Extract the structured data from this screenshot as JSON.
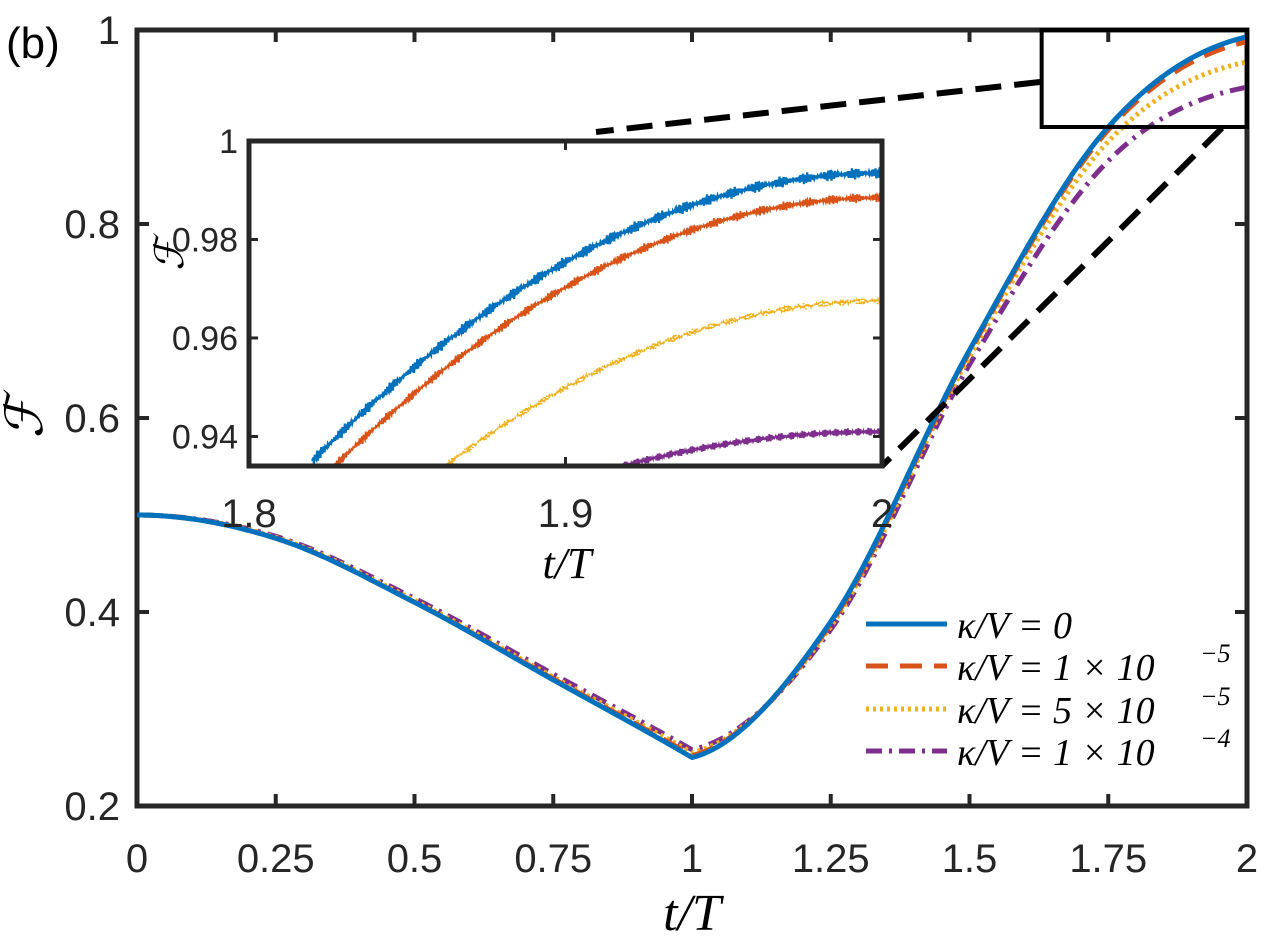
{
  "chart_data": [
    {
      "type": "line",
      "panel_label": "(b)",
      "xlabel": "t/T",
      "ylabel": "ℱ",
      "xlim": [
        0,
        2
      ],
      "ylim": [
        0.2,
        1
      ],
      "xticks": [
        0,
        0.25,
        0.5,
        0.75,
        1,
        1.25,
        1.5,
        1.75,
        2
      ],
      "xtick_labels": [
        "0",
        "0.25",
        "0.5",
        "0.75",
        "1",
        "1.25",
        "1.5",
        "1.75",
        "2"
      ],
      "yticks": [
        0.2,
        0.4,
        0.6,
        0.8,
        1
      ],
      "ytick_labels": [
        "0.2",
        "0.4",
        "0.6",
        "0.8",
        "1"
      ],
      "legend_position": "bottom-right",
      "x": [
        0,
        0.25,
        0.5,
        0.75,
        1,
        1.25,
        1.5,
        1.75,
        2
      ],
      "series": [
        {
          "name": "κ/V = 0",
          "legend_lhs": "κ/V = 0",
          "legend_exp": "",
          "color": "#0072BD",
          "dash": "solid",
          "values": [
            0.5,
            0.476,
            0.41,
            0.33,
            0.25,
            0.39,
            0.67,
            0.9,
            0.993
          ]
        },
        {
          "name": "κ/V = 1 × 10⁻⁵",
          "legend_lhs": "κ/V = 1 × 10",
          "legend_exp": "−5",
          "color": "#D95319",
          "dash": "dashed",
          "values": [
            0.5,
            0.476,
            0.41,
            0.331,
            0.252,
            0.388,
            0.668,
            0.897,
            0.988
          ]
        },
        {
          "name": "κ/V = 5 × 10⁻⁵",
          "legend_lhs": "κ/V = 5 × 10",
          "legend_exp": "−5",
          "color": "#EDB120",
          "dash": "dotted",
          "values": [
            0.5,
            0.477,
            0.412,
            0.333,
            0.255,
            0.385,
            0.663,
            0.885,
            0.967
          ]
        },
        {
          "name": "κ/V = 1 × 10⁻⁴",
          "legend_lhs": "κ/V = 1 × 10",
          "legend_exp": "−4",
          "color": "#7E2F8E",
          "dash": "dashdot",
          "values": [
            0.5,
            0.478,
            0.414,
            0.336,
            0.258,
            0.382,
            0.655,
            0.865,
            0.941
          ]
        }
      ],
      "zoom_box": {
        "xlim": [
          1.63,
          2
        ],
        "ylim": [
          0.9,
          1
        ]
      }
    },
    {
      "type": "line",
      "role": "inset",
      "xlabel": "t/T",
      "ylabel": "ℱ",
      "xlim": [
        1.8,
        2
      ],
      "ylim": [
        0.934,
        1
      ],
      "xticks": [
        1.8,
        1.9,
        2
      ],
      "xtick_labels": [
        "1.8",
        "1.9",
        "2"
      ],
      "yticks": [
        0.94,
        0.96,
        0.98,
        1
      ],
      "ytick_labels": [
        "0.94",
        "0.96",
        "0.98",
        "1"
      ],
      "series": [
        {
          "name": "κ/V = 0",
          "color": "#0072BD",
          "t_start": 1.82,
          "start": 0.935,
          "end": 0.9935,
          "oscillation_amplitude": 0.0012
        },
        {
          "name": "κ/V = 1 × 10⁻⁵",
          "color": "#D95319",
          "t_start": 1.827,
          "start": 0.934,
          "end": 0.9885,
          "oscillation_amplitude": 0.001
        },
        {
          "name": "κ/V = 5 × 10⁻⁵",
          "color": "#EDB120",
          "t_start": 1.862,
          "start": 0.934,
          "end": 0.9675,
          "oscillation_amplitude": 0.0007
        },
        {
          "name": "κ/V = 1 × 10⁻⁴",
          "color": "#7E2F8E",
          "t_start": 1.918,
          "start": 0.934,
          "end": 0.941,
          "oscillation_amplitude": 0.0008
        }
      ]
    }
  ]
}
